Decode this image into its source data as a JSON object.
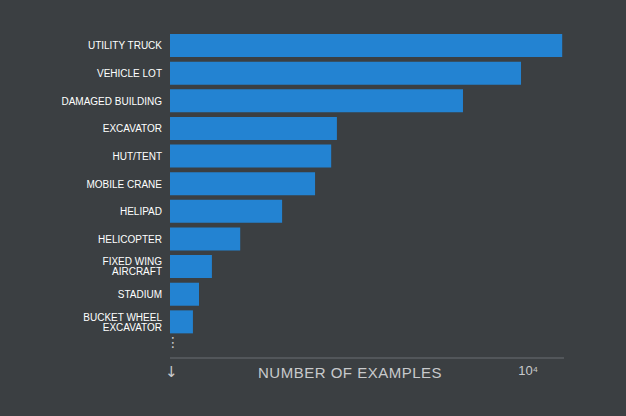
{
  "chart_data": {
    "type": "bar",
    "orientation": "horizontal",
    "categories": [
      "UTILITY TRUCK",
      "VEHICLE LOT",
      "DAMAGED BUILDING",
      "EXCAVATOR",
      "HUT/TENT",
      "MOBILE CRANE",
      "HELIPAD",
      "HELICOPTER",
      "FIXED WING AIRCRAFT",
      "STADIUM",
      "BUCKET WHEEL EXCAVATOR"
    ],
    "values": [
      10950,
      9800,
      8180,
      4660,
      4500,
      4050,
      3130,
      1960,
      1170,
      810,
      640
    ],
    "color": "#2383d2",
    "x_label": "NUMBER OF EXAMPLES",
    "xlim": [
      0,
      11000
    ],
    "xticks": [
      {
        "value": 10000,
        "label": "10⁴"
      }
    ],
    "grid": false,
    "annotations": [
      "⋮",
      "↓"
    ]
  }
}
